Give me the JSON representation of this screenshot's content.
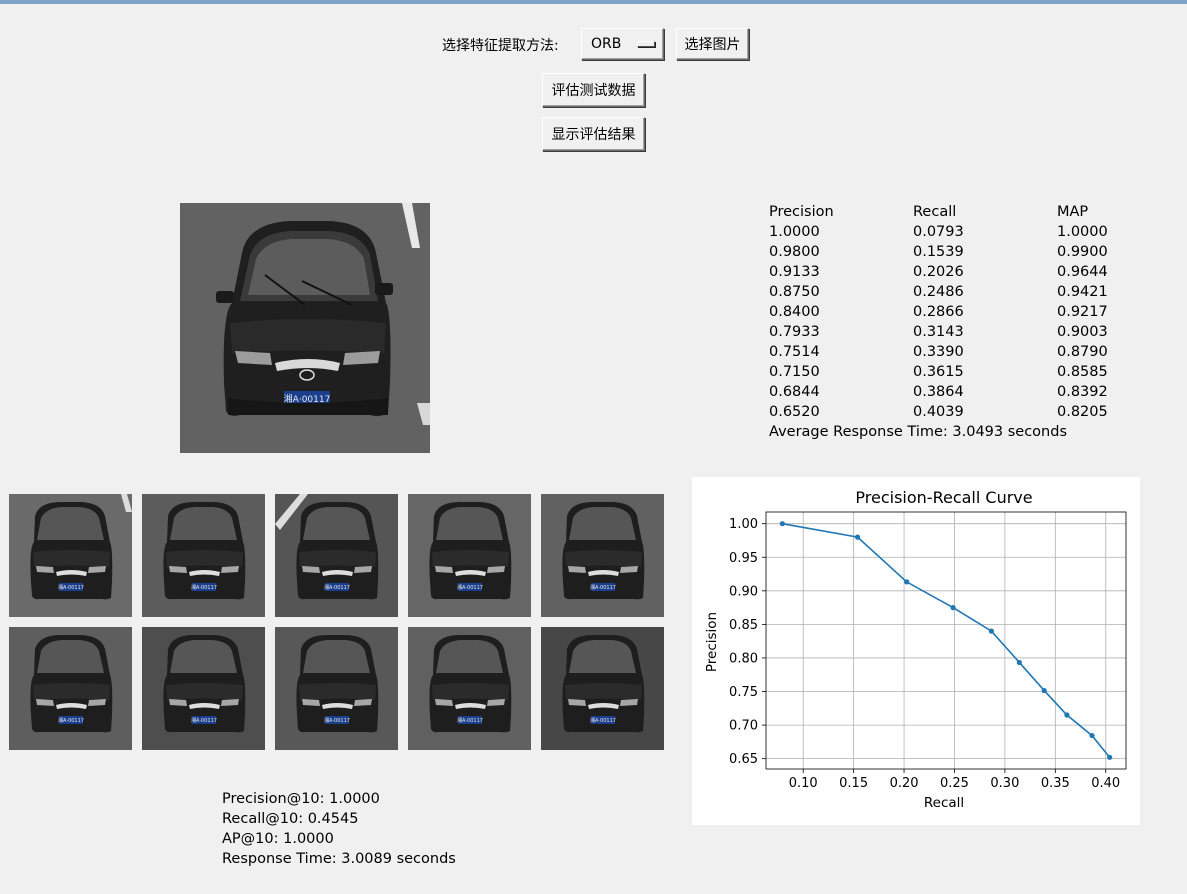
{
  "controls": {
    "method_label": "选择特征提取方法:",
    "method_value": "ORB",
    "select_image_label": "选择图片",
    "evaluate_label": "评估测试数据",
    "show_results_label": "显示评估结果"
  },
  "results_table": {
    "headers": [
      "Precision",
      "Recall",
      "MAP"
    ],
    "rows": [
      [
        "1.0000",
        "0.0793",
        "1.0000"
      ],
      [
        "0.9800",
        "0.1539",
        "0.9900"
      ],
      [
        "0.9133",
        "0.2026",
        "0.9644"
      ],
      [
        "0.8750",
        "0.2486",
        "0.9421"
      ],
      [
        "0.8400",
        "0.2866",
        "0.9217"
      ],
      [
        "0.7933",
        "0.3143",
        "0.9003"
      ],
      [
        "0.7514",
        "0.3390",
        "0.8790"
      ],
      [
        "0.7150",
        "0.3615",
        "0.8585"
      ],
      [
        "0.6844",
        "0.3864",
        "0.8392"
      ],
      [
        "0.6520",
        "0.4039",
        "0.8205"
      ]
    ],
    "average_response": "Average Response Time: 3.0493 seconds"
  },
  "query_image": {
    "plate": "湘A·00117"
  },
  "result_images": [
    {
      "plate": "湘A·00117"
    },
    {
      "plate": "湘A·00117"
    },
    {
      "plate": "湘A·00117"
    },
    {
      "plate": "湘A·00117"
    },
    {
      "plate": "湘A·00117"
    },
    {
      "plate": "湘A·00117"
    },
    {
      "plate": "湘A·00117"
    },
    {
      "plate": "湘A·00117"
    },
    {
      "plate": "湘A·00117"
    },
    {
      "plate": "湘A·00117"
    }
  ],
  "stats": {
    "precision_at_10": "Precision@10: 1.0000",
    "recall_at_10": "Recall@10: 0.4545",
    "ap_at_10": "AP@10: 1.0000",
    "response_time": "Response Time: 3.0089 seconds"
  },
  "colors": {
    "line": "#1f77b4",
    "top_bar": "#7fa3c8"
  },
  "chart_data": {
    "type": "line",
    "title": "Precision-Recall Curve",
    "xlabel": "Recall",
    "ylabel": "Precision",
    "x": [
      0.0793,
      0.1539,
      0.2026,
      0.2486,
      0.2866,
      0.3143,
      0.339,
      0.3615,
      0.3864,
      0.4039
    ],
    "series": [
      {
        "values": [
          1.0,
          0.98,
          0.9133,
          0.875,
          0.84,
          0.7933,
          0.7514,
          0.715,
          0.6844,
          0.652
        ]
      }
    ],
    "xlim": [
      0.0631,
      0.4201
    ],
    "ylim": [
      0.6346,
      1.0174
    ],
    "xticks": [
      0.1,
      0.15,
      0.2,
      0.25,
      0.3,
      0.35,
      0.4
    ],
    "xtick_labels": [
      "0.10",
      "0.15",
      "0.20",
      "0.25",
      "0.30",
      "0.35",
      "0.40"
    ],
    "yticks": [
      0.65,
      0.7,
      0.75,
      0.8,
      0.85,
      0.9,
      0.95,
      1.0
    ],
    "ytick_labels": [
      "0.65",
      "0.70",
      "0.75",
      "0.80",
      "0.85",
      "0.90",
      "0.95",
      "1.00"
    ],
    "grid": true,
    "marker": "dot"
  }
}
